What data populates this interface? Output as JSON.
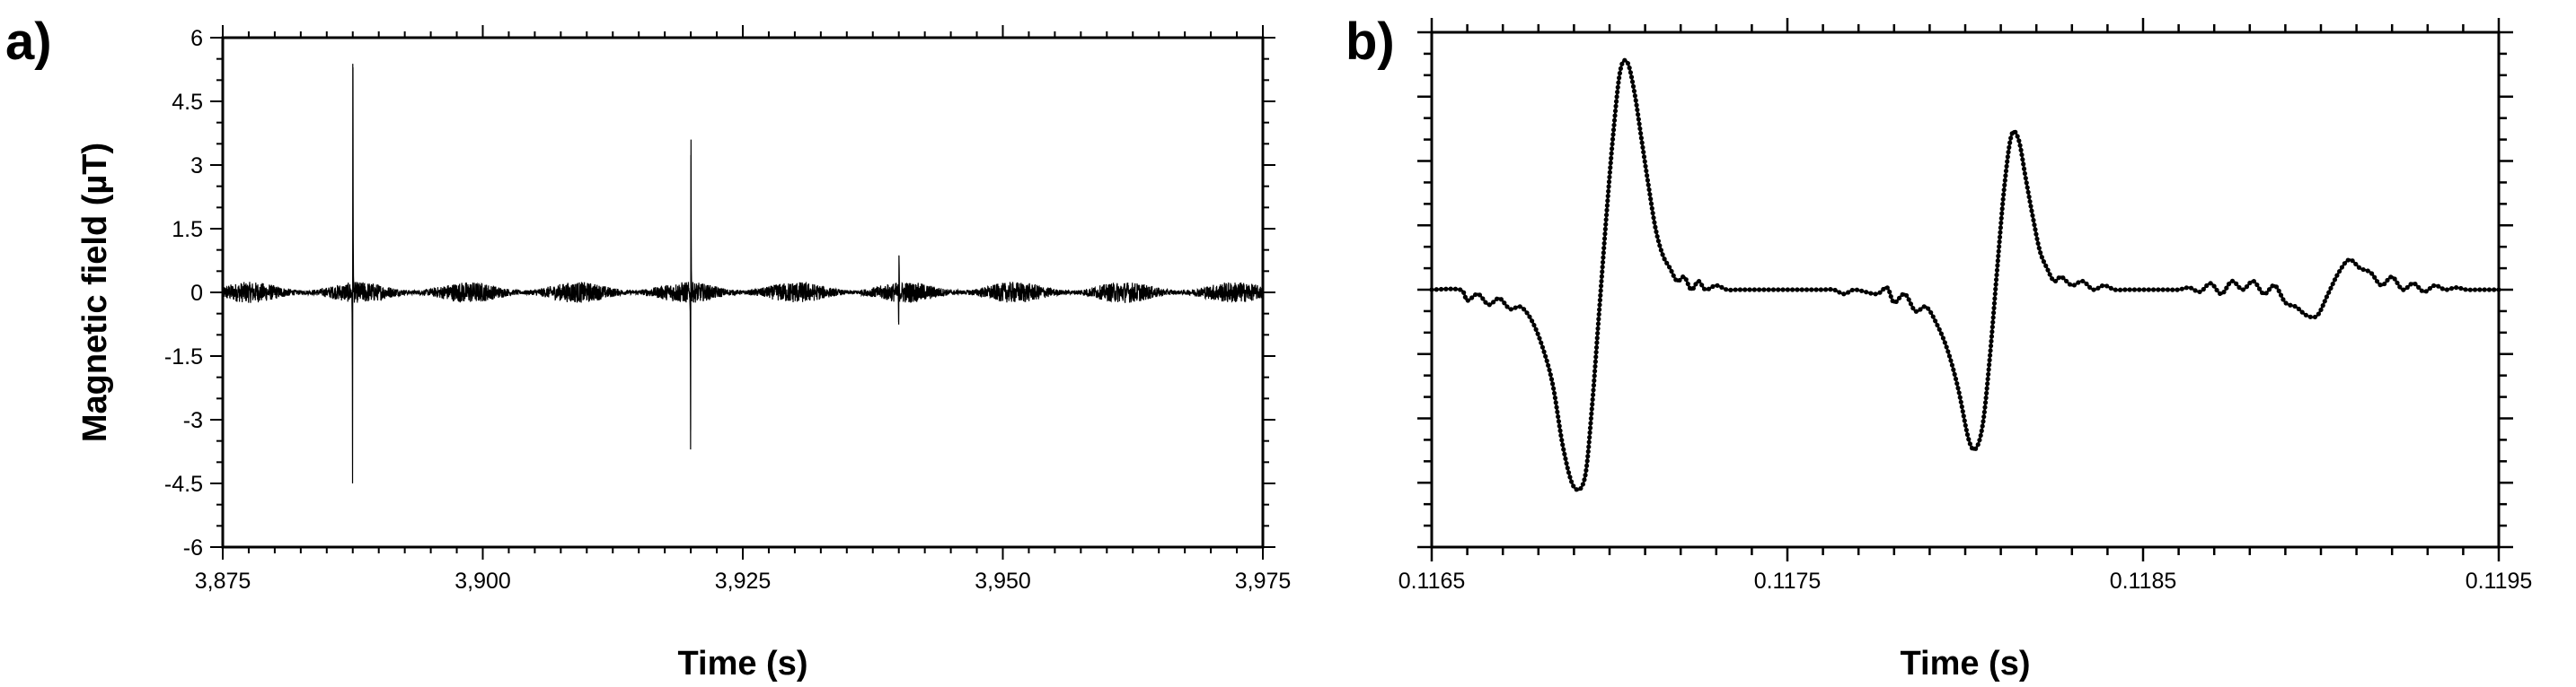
{
  "chart_data": [
    {
      "panel": "a)",
      "type": "line",
      "title": "",
      "xlabel": "Time (s)",
      "ylabel": "Magnetic field (µT)",
      "xlim": [
        3875,
        3975
      ],
      "ylim": [
        -6,
        6
      ],
      "x_ticks": [
        3875,
        3900,
        3925,
        3950,
        3975
      ],
      "x_tick_labels": [
        "3,875",
        "3,900",
        "3,925",
        "3,950",
        "3,975"
      ],
      "y_ticks": [
        6,
        4.5,
        3,
        1.5,
        0,
        -1.5,
        -3,
        -4.5,
        -6
      ],
      "y_tick_labels": [
        "6",
        "4.5",
        "3",
        "1.5",
        "0",
        "-1.5",
        "-3",
        "-4.5",
        "-6"
      ],
      "grid": false,
      "legend": "none",
      "color": "#000000",
      "baseline_noise_amplitude": 0.25,
      "events": [
        {
          "x": 3887.5,
          "peak": 5.3,
          "trough": -4.5
        },
        {
          "x": 3920.0,
          "peak": 3.6,
          "trough": -3.7
        },
        {
          "x": 3940.0,
          "peak": 0.85,
          "trough": -0.7
        }
      ]
    },
    {
      "panel": "b)",
      "type": "line",
      "title": "",
      "xlabel": "Time (s)",
      "ylabel": "",
      "xlim": [
        0.1165,
        0.1195
      ],
      "ylim": [
        -6,
        6
      ],
      "x_ticks": [
        0.1165,
        0.1175,
        0.1185,
        0.1195
      ],
      "x_tick_labels": [
        "0.1165",
        "0.1175",
        "0.1185",
        "0.1195"
      ],
      "grid": false,
      "legend": "none",
      "color": "#000000",
      "markers": "dot",
      "series": [
        {
          "x": [
            0.1165,
            0.11658,
            0.1166,
            0.11663,
            0.11666,
            0.11669,
            0.11672,
            0.11675,
            0.11678,
            0.11681,
            0.11684,
            0.11687,
            0.1169,
            0.11693,
            0.11695,
            0.11697,
            0.11699,
            0.11701,
            0.11703,
            0.11705,
            0.11707,
            0.11709,
            0.11711,
            0.11713,
            0.11715,
            0.11717,
            0.11719,
            0.11721,
            0.11723,
            0.11725,
            0.11727,
            0.1173,
            0.11733,
            0.11736,
            0.11739,
            0.11742,
            0.11745,
            0.11748,
            0.11751,
            0.11754,
            0.11757,
            0.1176,
            0.11763,
            0.11766,
            0.11769,
            0.11775,
            0.11778,
            0.1178,
            0.11783,
            0.11786,
            0.11789,
            0.11792,
            0.11795,
            0.11798,
            0.11801,
            0.11803,
            0.11805,
            0.11807,
            0.11809,
            0.11811,
            0.11813,
            0.11815,
            0.11817,
            0.11819,
            0.11821,
            0.11823,
            0.11825,
            0.11827,
            0.1183,
            0.11833,
            0.11836,
            0.11839,
            0.11842,
            0.11845,
            0.11848,
            0.11851,
            0.11854,
            0.11857,
            0.1186,
            0.11863,
            0.11866,
            0.11869,
            0.11872,
            0.11875,
            0.11878,
            0.11881,
            0.11884,
            0.11887,
            0.1189,
            0.11893,
            0.11896,
            0.11899,
            0.11902,
            0.11905,
            0.11908,
            0.11911,
            0.11914,
            0.11917,
            0.1192,
            0.11923,
            0.11926,
            0.11929,
            0.11932,
            0.11935,
            0.11938,
            0.11941,
            0.11944,
            0.11947,
            0.1195
          ],
          "y": [
            0,
            0,
            -0.25,
            -0.1,
            -0.35,
            -0.2,
            -0.45,
            -0.4,
            -0.7,
            -1.3,
            -2.2,
            -3.7,
            -4.6,
            -4.4,
            -2.8,
            -0.6,
            1.6,
            3.6,
            5.1,
            5.3,
            4.6,
            3.5,
            2.4,
            1.4,
            0.8,
            0.5,
            0.2,
            0.3,
            0.0,
            0.2,
            0.0,
            0.1,
            0.0,
            0.0,
            0.0,
            0.0,
            0.0,
            0.0,
            0.0,
            0.0,
            0.0,
            0.0,
            0.0,
            -0.1,
            0.0,
            -0.1,
            0.05,
            -0.3,
            -0.1,
            -0.5,
            -0.4,
            -0.8,
            -1.4,
            -2.3,
            -3.5,
            -3.7,
            -3.1,
            -1.5,
            0.5,
            2.4,
            3.6,
            3.5,
            2.6,
            1.7,
            0.9,
            0.5,
            0.2,
            0.3,
            0.1,
            0.2,
            0.0,
            0.1,
            0.0,
            0.0,
            0.0,
            0.0,
            0.0,
            0.0,
            0.0,
            0.05,
            -0.05,
            0.15,
            -0.1,
            0.2,
            0.0,
            0.2,
            -0.1,
            0.1,
            -0.3,
            -0.4,
            -0.6,
            -0.6,
            -0.1,
            0.4,
            0.7,
            0.5,
            0.4,
            0.1,
            0.3,
            0.0,
            0.15,
            -0.05,
            0.1,
            0.0,
            0.05,
            0.0,
            0.0,
            0.0,
            0.0
          ]
        }
      ]
    }
  ]
}
